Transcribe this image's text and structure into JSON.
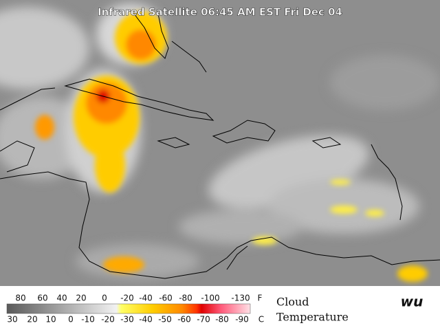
{
  "title": "Infrared Satellite 06:45 AM EST Fri Dec 04",
  "legend": {
    "fahrenheit_labels": [
      "80",
      "60",
      "40",
      "20",
      "0",
      "-20",
      "-40",
      "-60",
      "-80",
      "-100",
      "-130"
    ],
    "fahrenheit_unit": "F",
    "celsius_labels": [
      "30",
      "20",
      "10",
      "0",
      "-10",
      "-20",
      "-30",
      "-40",
      "-50",
      "-60",
      "-70",
      "-80",
      "-90"
    ],
    "celsius_unit": "C",
    "caption_line1": "Cloud",
    "caption_line2": "Temperature"
  },
  "logo": "wu"
}
